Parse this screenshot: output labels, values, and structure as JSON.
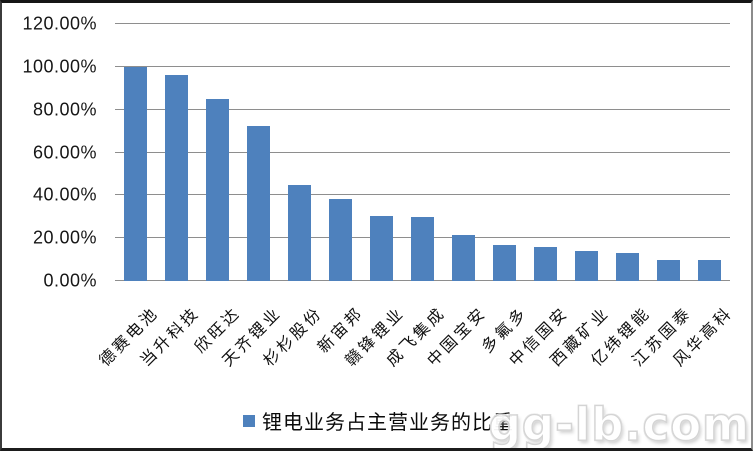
{
  "chart_data": {
    "type": "bar",
    "title": "",
    "xlabel": "",
    "ylabel": "",
    "categories": [
      "德赛电池",
      "当升科技",
      "欣旺达",
      "天齐锂业",
      "杉杉股份",
      "新宙邦",
      "赣锋锂业",
      "成飞集成",
      "中国宝安",
      "多氟多",
      "中信国安",
      "西藏矿业",
      "亿纬锂能",
      "江苏国泰",
      "风华高科"
    ],
    "values": [
      100.0,
      96.3,
      85.0,
      72.5,
      44.6,
      38.2,
      30.4,
      30.1,
      21.3,
      16.7,
      15.7,
      13.9,
      13.1,
      10.0,
      9.9
    ],
    "value_unit": "%",
    "ylim": [
      0,
      120
    ],
    "ytick_step": 20,
    "ytick_labels": [
      "0.00%",
      "20.00%",
      "40.00%",
      "60.00%",
      "80.00%",
      "100.00%",
      "120.00%"
    ],
    "grid": true,
    "bar_color": "#4E81BD",
    "gridline_color": "#8E8E8E",
    "legend": {
      "label": "锂电业务占主营业务的比重",
      "position": "bottom",
      "swatch_color": "#4E81BD"
    }
  },
  "watermark": {
    "text": "gg-lb.com"
  }
}
